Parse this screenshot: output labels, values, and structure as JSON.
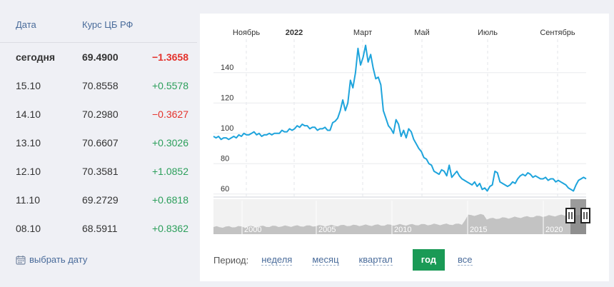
{
  "table": {
    "header_date": "Дата",
    "header_rate": "Курс ЦБ РФ",
    "rows": [
      {
        "date": "сегодня",
        "rate": "69.4900",
        "change": "−1.3658",
        "dir": "neg",
        "bold": true
      },
      {
        "date": "15.10",
        "rate": "70.8558",
        "change": "+0.5578",
        "dir": "pos"
      },
      {
        "date": "14.10",
        "rate": "70.2980",
        "change": "−0.3627",
        "dir": "neg"
      },
      {
        "date": "13.10",
        "rate": "70.6607",
        "change": "+0.3026",
        "dir": "pos"
      },
      {
        "date": "12.10",
        "rate": "70.3581",
        "change": "+1.0852",
        "dir": "pos"
      },
      {
        "date": "11.10",
        "rate": "69.2729",
        "change": "+0.6818",
        "dir": "pos"
      },
      {
        "date": "08.10",
        "rate": "68.5911",
        "change": "+0.8362",
        "dir": "pos"
      }
    ],
    "pick_date_label": "выбрать дату",
    "pick_date_icon": "calendar-icon"
  },
  "colors": {
    "line": "#1ea4dc",
    "positive": "#2c9f5b",
    "negative": "#e4312b",
    "link": "#496b9a",
    "active_button": "#1a9a56"
  },
  "period": {
    "label": "Период:",
    "options": [
      "неделя",
      "месяц",
      "квартал",
      "год",
      "все"
    ],
    "active": "год"
  },
  "chart_data": {
    "type": "line",
    "title": "",
    "xlabel": "",
    "ylabel": "",
    "x_ticks": [
      "Ноябрь",
      "2022",
      "Март",
      "Май",
      "Июль",
      "Сентябрь"
    ],
    "y_ticks": [
      60,
      80,
      100,
      120,
      140
    ],
    "ylim": [
      58,
      162
    ],
    "grid": true,
    "series": [
      {
        "values": [
          98,
          97,
          98,
          96,
          97,
          97,
          96,
          97,
          98,
          97,
          99,
          98,
          100,
          99,
          99,
          100,
          101,
          99,
          100,
          98,
          99,
          99,
          100,
          99,
          100,
          100,
          100,
          102,
          101,
          101,
          103,
          102,
          103,
          105,
          104,
          106,
          105,
          105,
          103,
          104,
          104,
          102,
          103,
          103,
          104,
          102,
          102,
          107,
          108,
          110,
          115,
          122,
          115,
          120,
          135,
          130,
          140,
          156,
          145,
          150,
          158,
          147,
          152,
          143,
          136,
          137,
          132,
          115,
          110,
          105,
          103,
          100,
          109,
          106,
          98,
          102,
          97,
          103,
          101,
          96,
          93,
          90,
          88,
          84,
          83,
          80,
          79,
          75,
          74,
          73,
          76,
          75,
          72,
          79,
          71,
          73,
          75,
          72,
          70,
          69,
          68,
          67,
          66,
          68,
          65,
          67,
          63,
          64,
          62,
          65,
          66,
          75,
          74,
          68,
          67,
          66,
          65,
          66,
          68,
          67,
          70,
          72,
          73,
          72,
          74,
          73,
          71,
          72,
          71,
          70,
          70,
          71,
          69,
          70,
          70,
          68,
          69,
          68,
          67,
          66,
          64,
          63,
          62,
          66,
          69,
          70,
          71,
          70
        ]
      }
    ],
    "navigator": {
      "year_labels": [
        "2000",
        "2005",
        "2010",
        "2015",
        "2020"
      ]
    }
  }
}
